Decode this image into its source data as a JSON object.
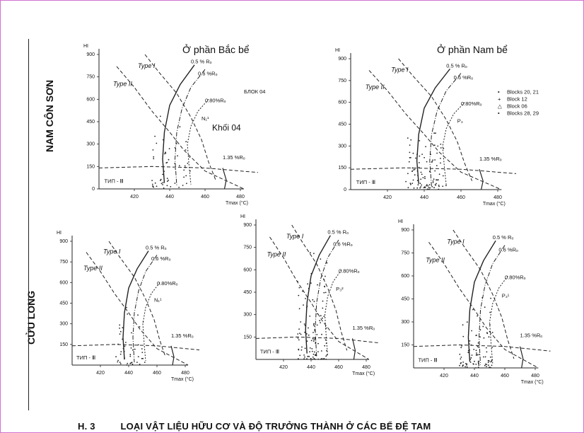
{
  "figure": {
    "side_labels": {
      "top": "NAM CÔN SƠN",
      "bottom": "CỬU LONG"
    },
    "caption_number": "H.  3",
    "caption_text": "LOẠI VẬT LIỆU HỮU CƠ VÀ ĐỘ TRƯỞNG THÀNH Ở CÁC BỂ ĐỆ TAM"
  },
  "plot_text": {
    "hi": "HI",
    "type1": "Type I",
    "type2": "Type II",
    "r05": "0.5 % Rₒ",
    "r06": "0.6 %Rₒ",
    "r080": "0.80%Rₒ",
    "r135": "1.35 %Rₒ",
    "tip": "ТИП - Ⅲ",
    "tmax": "Tmax (°C)"
  },
  "panels": [
    {
      "title": "Ở phần Bắc bể",
      "sub1": "БЛОК 04",
      "sub2": "Khối 04",
      "formation": "N₁¹",
      "legend": []
    },
    {
      "title": "Ở phần Nam bể",
      "sub1": "",
      "sub2": "",
      "formation": "P₃",
      "legend": [
        "Blocks 20, 21",
        "Block 12",
        "Block 06",
        "Blocks 28, 29"
      ],
      "legend_markers": [
        "•",
        "+",
        "△",
        "•"
      ]
    },
    {
      "title": "",
      "sub1": "",
      "sub2": "",
      "formation": "N₁¹",
      "legend": []
    },
    {
      "title": "",
      "sub1": "",
      "sub2": "",
      "formation": "P₃²",
      "legend": []
    },
    {
      "title": "",
      "sub1": "",
      "sub2": "",
      "formation": "P₃¹",
      "legend": []
    }
  ],
  "chart_data": [
    {
      "type": "scatter",
      "ylabel": "HI",
      "xlabel": "Tmax (°C)",
      "xlim": [
        400,
        500
      ],
      "ylim": [
        0,
        900
      ],
      "x_ticks": [
        420,
        440,
        460,
        480
      ],
      "y_ticks": [
        0,
        150,
        300,
        450,
        600,
        750,
        900
      ]
    },
    {
      "type": "scatter",
      "ylabel": "HI",
      "xlabel": "Tmax (°C)",
      "xlim": [
        400,
        500
      ],
      "ylim": [
        0,
        900
      ],
      "x_ticks": [
        420,
        440,
        460,
        480
      ],
      "y_ticks": [
        0,
        150,
        300,
        450,
        600,
        750,
        900
      ]
    },
    {
      "type": "scatter",
      "ylabel": "HI",
      "xlabel": "Tmax (°C)",
      "xlim": [
        400,
        500
      ],
      "ylim": [
        0,
        900
      ],
      "x_ticks": [
        420,
        440,
        460,
        480
      ],
      "y_ticks": [
        150,
        300,
        450,
        600,
        750,
        900
      ]
    },
    {
      "type": "scatter",
      "ylabel": "HI",
      "xlabel": "Tmax (°C)",
      "xlim": [
        400,
        500
      ],
      "ylim": [
        0,
        900
      ],
      "x_ticks": [
        420,
        440,
        460,
        480
      ],
      "y_ticks": [
        150,
        300,
        450,
        600,
        750,
        900
      ]
    },
    {
      "type": "scatter",
      "ylabel": "HI",
      "xlabel": "Tmax (°C)",
      "xlim": [
        400,
        500
      ],
      "ylim": [
        0,
        900
      ],
      "x_ticks": [
        420,
        440,
        460,
        480
      ],
      "y_ticks": [
        150,
        300,
        450,
        600,
        750,
        900
      ]
    }
  ]
}
